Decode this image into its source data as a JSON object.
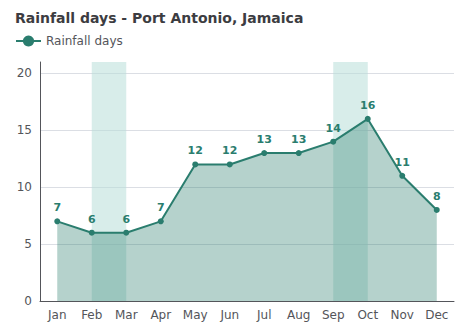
{
  "chart_data": {
    "type": "line",
    "title": "Rainfall days - Port Antonio, Jamaica",
    "categories": [
      "Jan",
      "Feb",
      "Mar",
      "Apr",
      "May",
      "Jun",
      "Jul",
      "Aug",
      "Sep",
      "Oct",
      "Nov",
      "Dec"
    ],
    "series": [
      {
        "name": "Rainfall days",
        "color": "#2a7d6e",
        "values": [
          7,
          6,
          6,
          7,
          12,
          12,
          13,
          13,
          14,
          16,
          11,
          8
        ]
      }
    ],
    "highlight_bands": [
      {
        "from": "Feb",
        "to": "Mar",
        "color": "#b8dfd8"
      },
      {
        "from": "Sep",
        "to": "Oct",
        "color": "#b8dfd8"
      }
    ],
    "ylim": [
      0,
      21
    ],
    "yticks": [
      0,
      5,
      10,
      15,
      20
    ],
    "grid": true,
    "data_labels": true,
    "legend": "upper left"
  }
}
